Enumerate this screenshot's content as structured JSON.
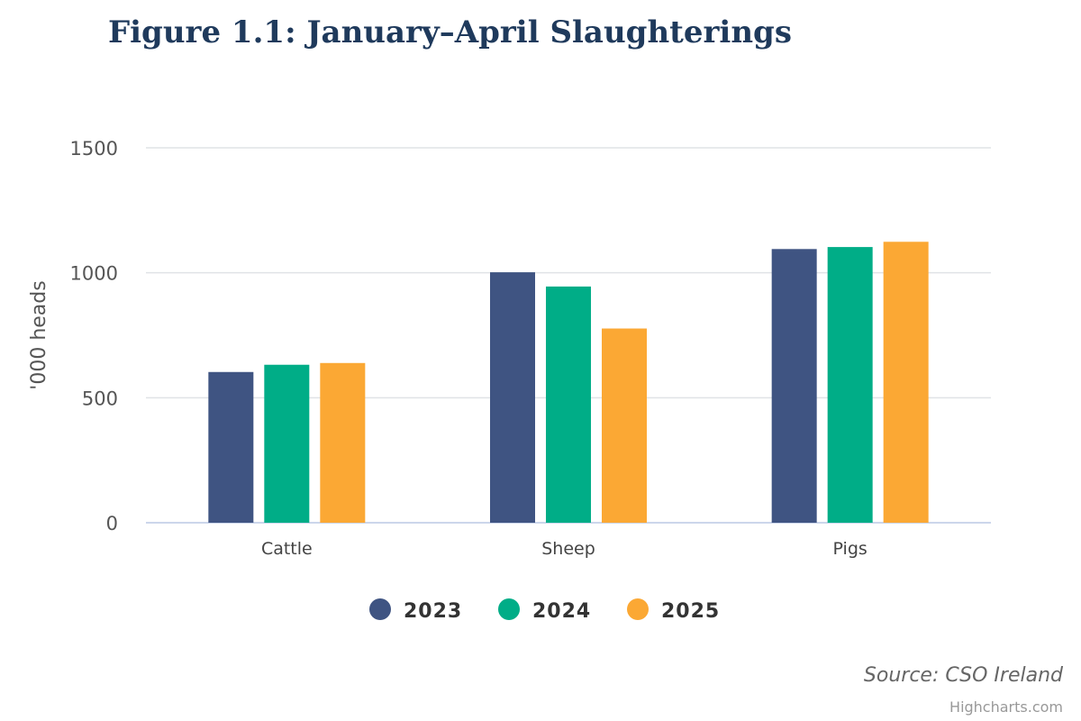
{
  "chart_data": {
    "type": "bar",
    "title": "Figure 1.1: January–April Slaughterings",
    "xlabel": "",
    "ylabel": "'000 heads",
    "ylim": [
      0,
      1500
    ],
    "yticks": [
      0,
      500,
      1000,
      1500
    ],
    "categories": [
      "Cattle",
      "Sheep",
      "Pigs"
    ],
    "series": [
      {
        "name": "2023",
        "color": "#3f5482",
        "values": [
          603,
          1002,
          1095
        ]
      },
      {
        "name": "2024",
        "color": "#00ad87",
        "values": [
          632,
          945,
          1103
        ]
      },
      {
        "name": "2025",
        "color": "#fba834",
        "values": [
          639,
          777,
          1124
        ]
      }
    ],
    "grid": true,
    "legend_position": "bottom-center"
  },
  "footer": {
    "source": "Source: CSO Ireland",
    "credit": "Highcharts.com"
  }
}
